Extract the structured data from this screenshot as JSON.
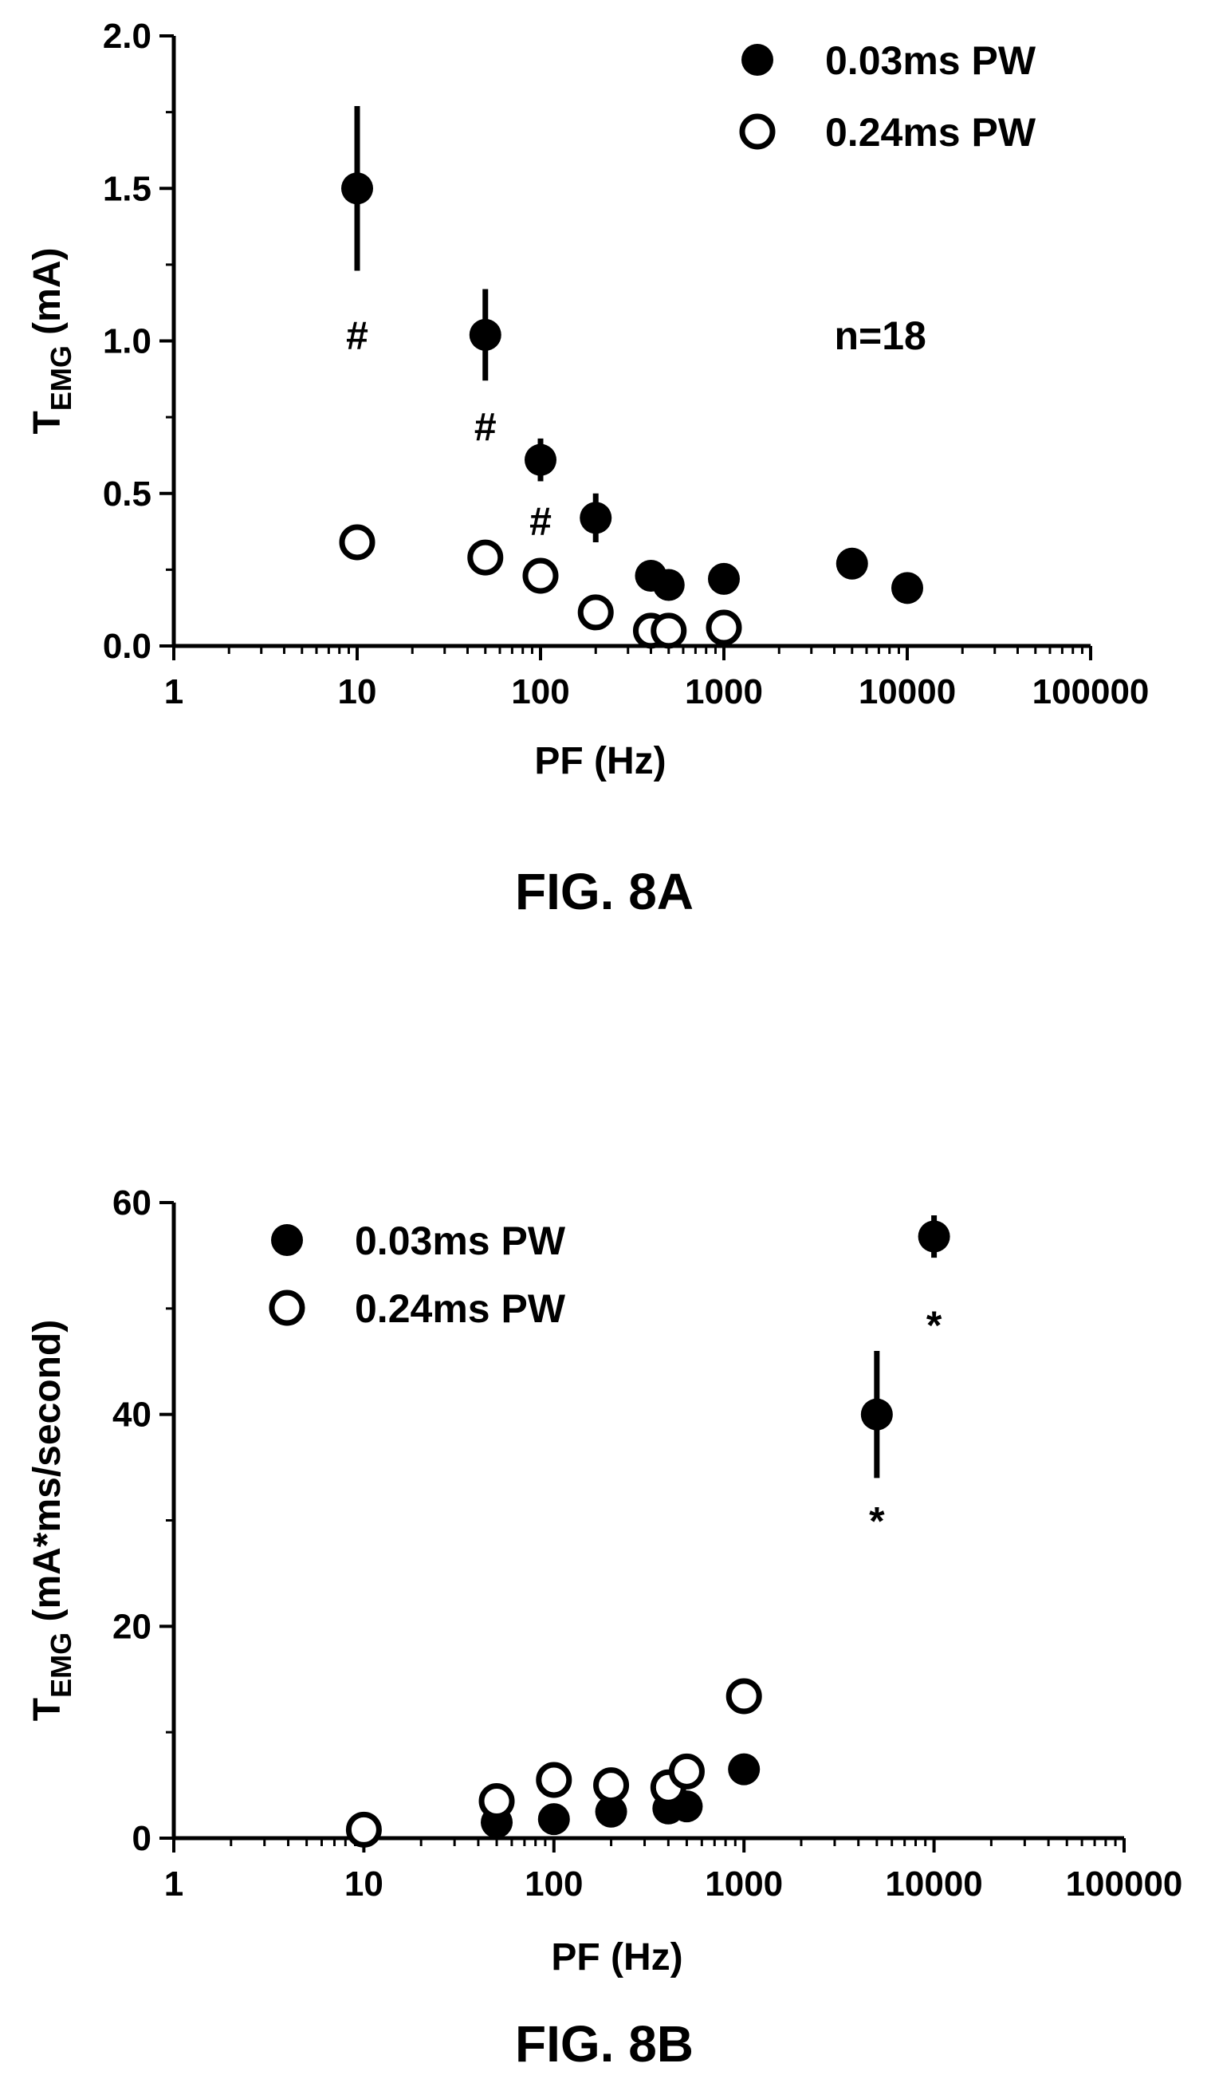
{
  "chart_data": [
    {
      "type": "scatter",
      "caption": "FIG. 8A",
      "xlabel": "PF (Hz)",
      "ylabel_main": "T",
      "ylabel_sub": "EMG",
      "ylabel_rest": " (mA)",
      "x_scale": "log",
      "xlim": [
        1,
        100000
      ],
      "ylim": [
        0,
        2.0
      ],
      "x_ticks": [
        1,
        10,
        100,
        1000,
        10000,
        100000
      ],
      "x_tick_labels": [
        "1",
        "10",
        "100",
        "1000",
        "10000",
        "100000"
      ],
      "y_ticks": [
        0,
        0.5,
        1.0,
        1.5,
        2.0
      ],
      "y_tick_labels": [
        "0.0",
        "0.5",
        "1.0",
        "1.5",
        "2.0"
      ],
      "grid": false,
      "legend_position": "top-right",
      "series": [
        {
          "name": "0.03ms PW",
          "marker": "filled-circle",
          "x": [
            10,
            50,
            100,
            200,
            400,
            500,
            1000,
            5000,
            10000
          ],
          "y": [
            1.5,
            1.02,
            0.61,
            0.42,
            0.23,
            0.2,
            0.22,
            0.27,
            0.19
          ],
          "err": [
            0.27,
            0.15,
            0.07,
            0.08,
            0.02,
            0.02,
            0.02,
            0.02,
            0.02
          ]
        },
        {
          "name": "0.24ms PW",
          "marker": "open-circle",
          "x": [
            10,
            50,
            100,
            200,
            400,
            500,
            1000
          ],
          "y": [
            0.34,
            0.29,
            0.23,
            0.11,
            0.05,
            0.05,
            0.06
          ],
          "err": [
            0,
            0,
            0,
            0,
            0,
            0,
            0
          ]
        }
      ],
      "annotations": [
        {
          "text": "#",
          "x": 10,
          "y": 1.02
        },
        {
          "text": "#",
          "x": 50,
          "y": 0.72
        },
        {
          "text": "#",
          "x": 100,
          "y": 0.41
        },
        {
          "text": "n=18",
          "x": 4000,
          "y": 1.02
        }
      ]
    },
    {
      "type": "scatter",
      "caption": "FIG. 8B",
      "xlabel": "PF (Hz)",
      "ylabel_main": "T",
      "ylabel_sub": "EMG",
      "ylabel_rest": " (mA*ms/second)",
      "x_scale": "log",
      "xlim": [
        1,
        100000
      ],
      "ylim": [
        0,
        60
      ],
      "x_ticks": [
        1,
        10,
        100,
        1000,
        10000,
        100000
      ],
      "x_tick_labels": [
        "1",
        "10",
        "100",
        "1000",
        "10000",
        "100000"
      ],
      "y_ticks": [
        0,
        20,
        40,
        60
      ],
      "y_tick_labels": [
        "0",
        "20",
        "40",
        "60"
      ],
      "grid": false,
      "legend_position": "top-left",
      "series": [
        {
          "name": "0.03ms PW",
          "marker": "filled-circle",
          "x": [
            10,
            50,
            100,
            200,
            400,
            500,
            1000,
            5000,
            10000
          ],
          "y": [
            0.9,
            1.5,
            1.8,
            2.5,
            2.8,
            3.0,
            6.5,
            40,
            56.8
          ],
          "err": [
            0,
            0,
            0,
            0,
            0,
            0,
            0,
            6,
            2
          ]
        },
        {
          "name": "0.24ms PW",
          "marker": "open-circle",
          "x": [
            10,
            50,
            100,
            200,
            400,
            500,
            1000
          ],
          "y": [
            0.8,
            3.5,
            5.5,
            5.0,
            4.8,
            6.3,
            13.4
          ],
          "err": [
            0,
            0,
            0,
            0,
            0,
            0,
            0
          ]
        }
      ],
      "annotations": [
        {
          "text": "*",
          "x": 5000,
          "y": 30
        },
        {
          "text": "*",
          "x": 10000,
          "y": 48.5
        }
      ]
    }
  ]
}
